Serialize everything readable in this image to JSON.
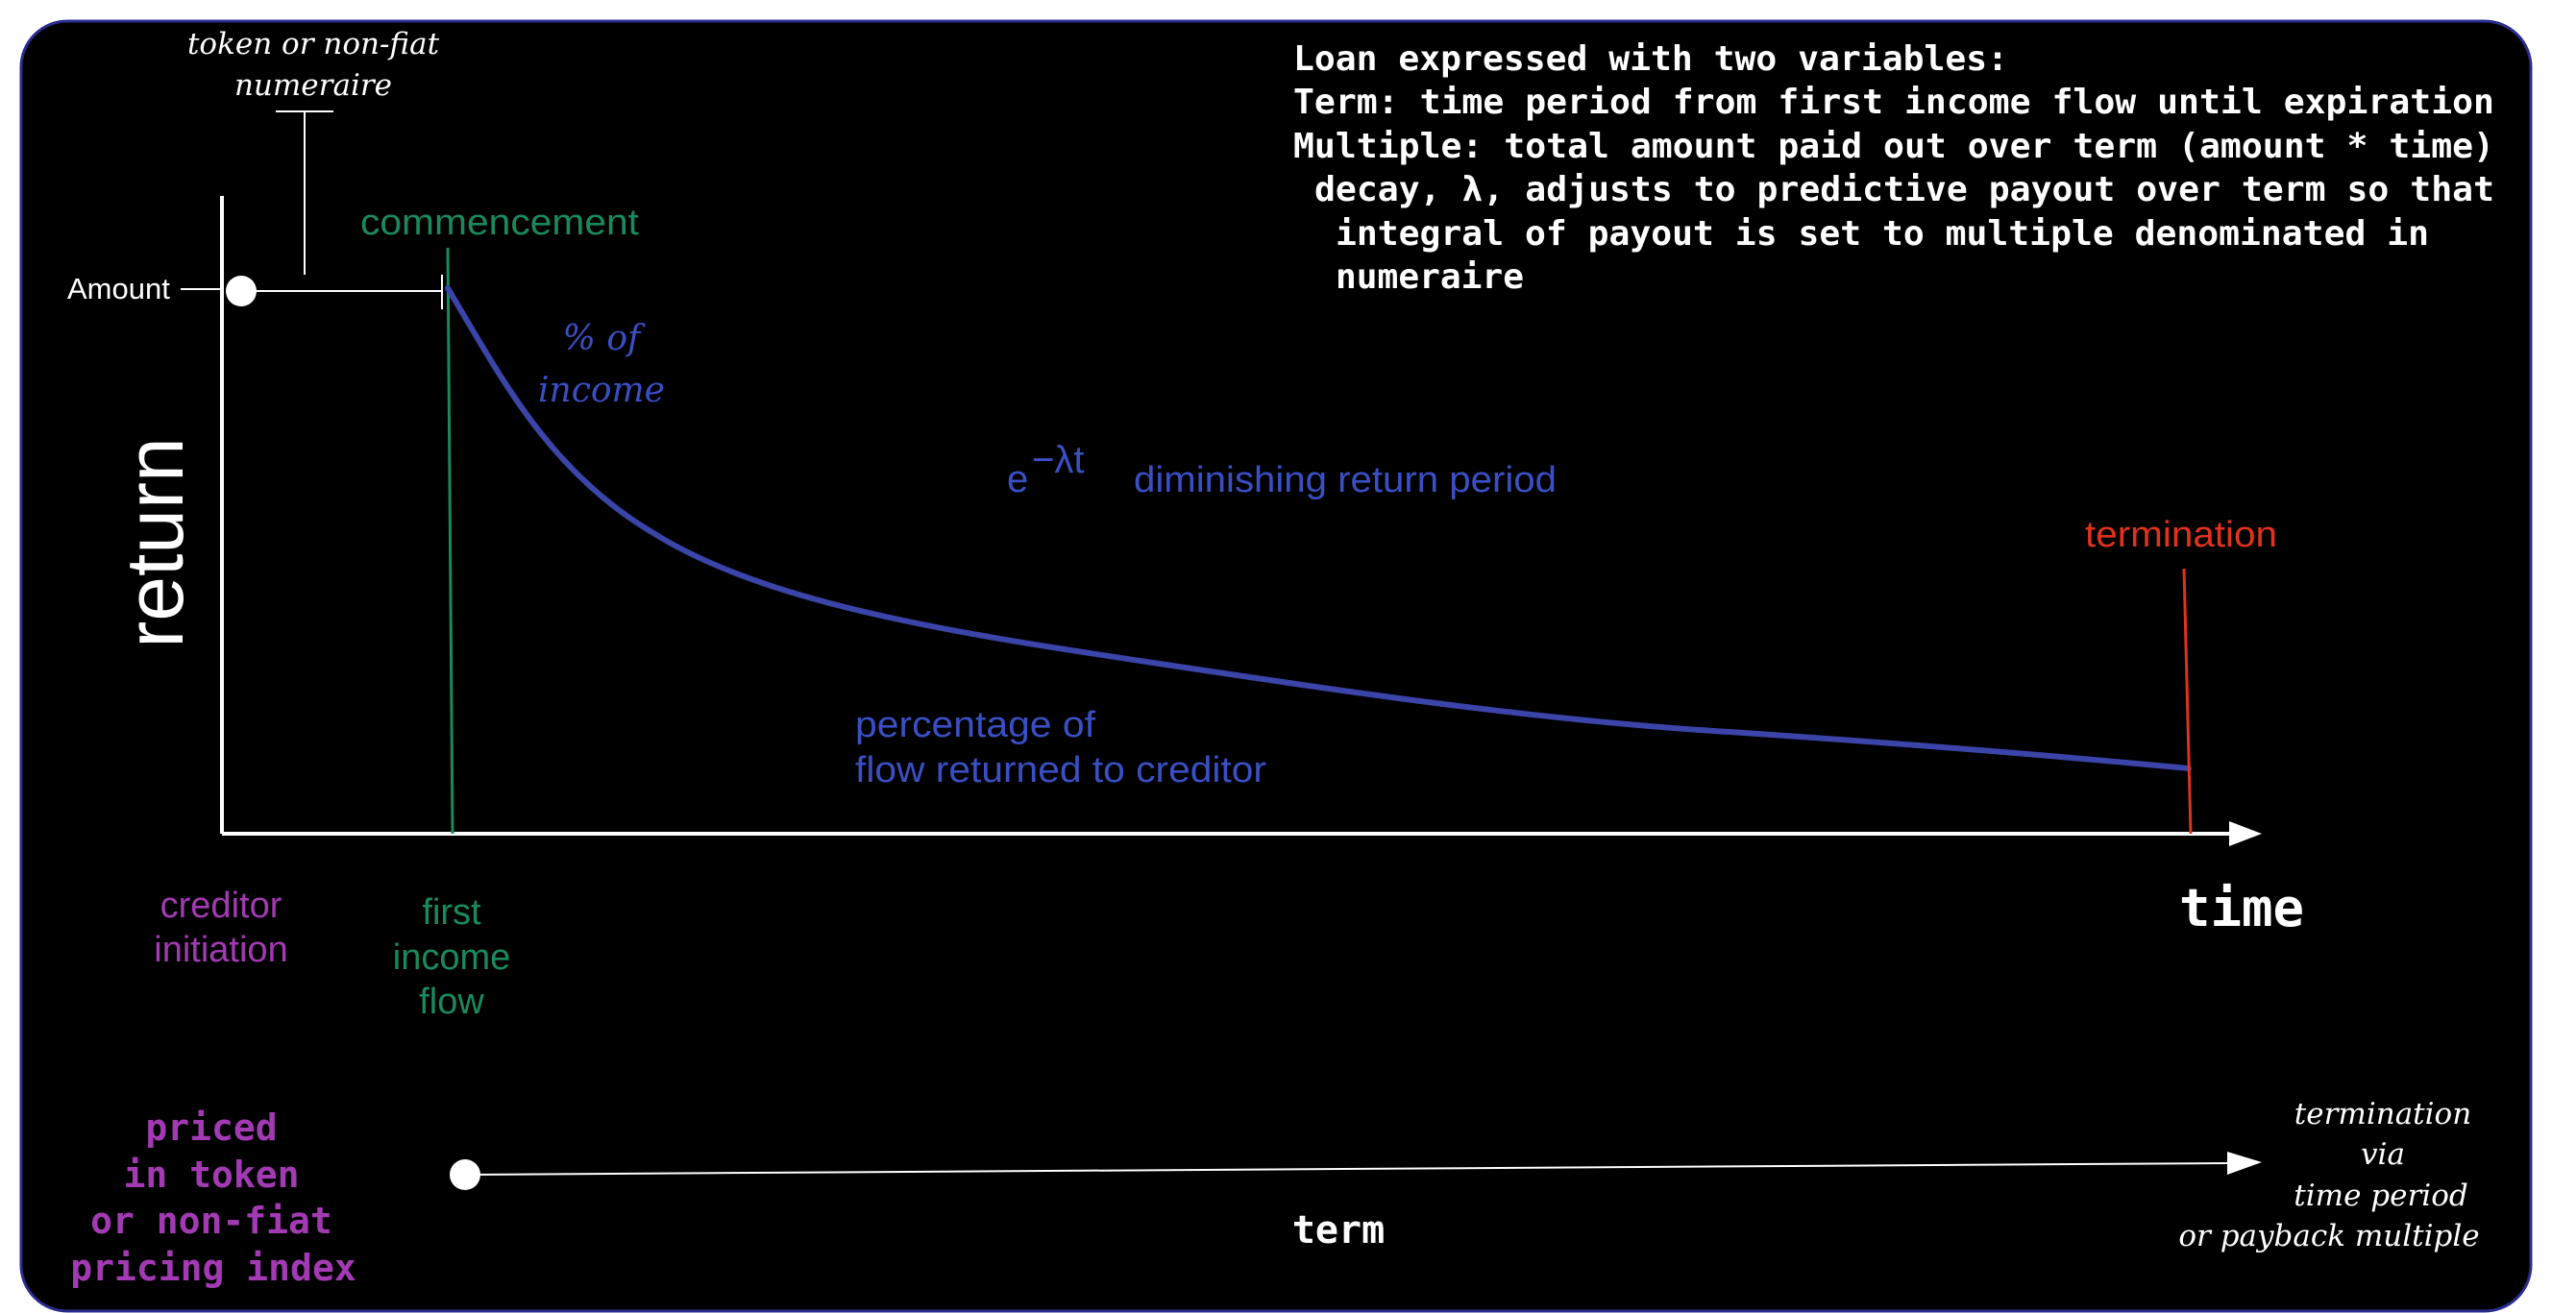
{
  "colors": {
    "background": "#000000",
    "frame_border": "#2a2d8c",
    "axis": "#ffffff",
    "curve": "#3b44a8",
    "green": "#1a8a5c",
    "red": "#e0321c",
    "purple": "#a23ab3",
    "blue_text": "#3b4fc4"
  },
  "token_note": {
    "line1": "token or non-fiat",
    "line2": "numeraire"
  },
  "description": {
    "line1": "Loan expressed with two variables:",
    "line2": "Term: time period from first income flow until expiration",
    "line3": "Multiple: total amount paid out over term (amount * time)",
    "line4": "decay, λ, adjusts to predictive payout over term so that",
    "line5": "integral of payout is set to multiple denominated in",
    "line6": "numeraire"
  },
  "commencement": "commencement",
  "amount_label": "Amount",
  "y_axis_label": "return",
  "percent_income": {
    "line1": "% of",
    "line2": "income"
  },
  "formula": {
    "base": "e",
    "exponent": "−λt"
  },
  "diminishing": "diminishing return period",
  "termination_label": "termination",
  "percentage_flow": {
    "line1": "percentage of",
    "line2": "flow returned to creditor"
  },
  "x_axis_label": "time",
  "creditor_initiation": {
    "line1": "creditor",
    "line2": "initiation"
  },
  "first_income_flow": {
    "line1": "first",
    "line2": "income",
    "line3": "flow"
  },
  "priced": {
    "line1": "priced",
    "line2": "in token",
    "line3": "or non-fiat",
    "line4": "pricing index"
  },
  "term_label": "term",
  "termination_via": {
    "line1": "termination",
    "line2": "via",
    "line3": "time period",
    "line4": "or payback multiple"
  }
}
